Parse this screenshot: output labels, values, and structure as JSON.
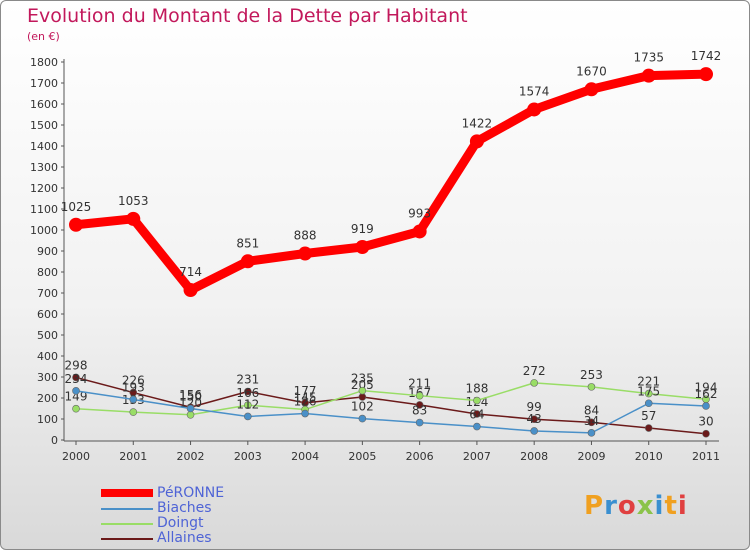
{
  "title": "Evolution du Montant de la Dette par Habitant",
  "unit": "(en €)",
  "logo": "Proxiti",
  "colors": {
    "title": "#c2185b",
    "legend_text": "#4f64d6",
    "axis": "#555555",
    "grid": "#ffffff"
  },
  "chart_data": {
    "type": "line",
    "title": "Evolution du Montant de la Dette par Habitant",
    "ylabel": "(en €)",
    "xlabel": "",
    "x": [
      "2000",
      "2001",
      "2002",
      "2003",
      "2004",
      "2005",
      "2006",
      "2007",
      "2008",
      "2009",
      "2010",
      "2011"
    ],
    "ylim": [
      0,
      1800
    ],
    "yticks": [
      0,
      100,
      200,
      300,
      400,
      500,
      600,
      700,
      800,
      900,
      1000,
      1100,
      1200,
      1300,
      1400,
      1500,
      1600,
      1700,
      1800
    ],
    "grid": false,
    "legend_position": "bottom-left",
    "series": [
      {
        "name": "PéRONNE",
        "color": "#ff0000",
        "values": [
          1025,
          1053,
          714,
          851,
          888,
          919,
          993,
          1422,
          1574,
          1670,
          1735,
          1742
        ]
      },
      {
        "name": "Biaches",
        "color": "#4a90c8",
        "values": [
          234,
          193,
          150,
          112,
          126,
          102,
          83,
          64,
          43,
          34,
          175,
          162
        ]
      },
      {
        "name": "Doingt",
        "color": "#99dd66",
        "values": [
          149,
          133,
          120,
          166,
          145,
          235,
          211,
          188,
          272,
          253,
          221,
          194
        ]
      },
      {
        "name": "Allaines",
        "color": "#6b1a1a",
        "values": [
          298,
          226,
          156,
          231,
          177,
          205,
          167,
          124,
          99,
          84,
          57,
          30
        ]
      }
    ]
  }
}
